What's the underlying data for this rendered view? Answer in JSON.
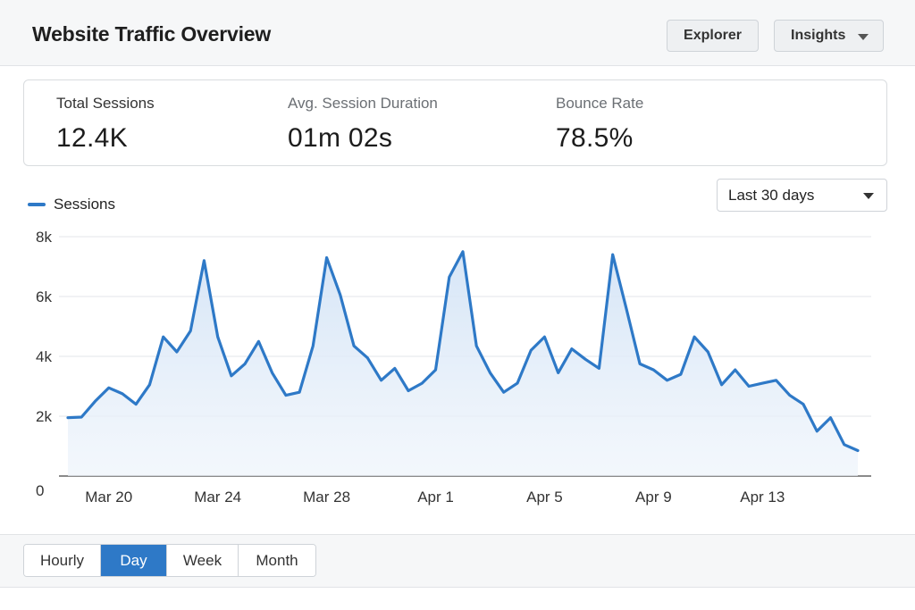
{
  "header": {
    "title": "Website Traffic Overview",
    "explorer_label": "Explorer",
    "insights_label": "Insights"
  },
  "stats": [
    {
      "label": "Total Sessions",
      "value": "12.4K"
    },
    {
      "label": "Avg. Session Duration",
      "value": "01m 02s"
    },
    {
      "label": "Bounce Rate",
      "value": "78.5%"
    }
  ],
  "range_select": {
    "value": "Last 30 days"
  },
  "granularity": {
    "options": [
      "Hourly",
      "Day",
      "Week",
      "Month"
    ],
    "selected": "Day"
  },
  "colors": {
    "accent": "#2e79c7",
    "area_fill": "#dde9f7"
  },
  "chart_data": {
    "type": "area",
    "title": "",
    "xlabel": "",
    "ylabel": "",
    "ylim": [
      0,
      8000
    ],
    "y_ticks": [
      0,
      2000,
      4000,
      6000,
      8000
    ],
    "y_tick_labels": [
      "0",
      "2k",
      "4k",
      "6k",
      "8k"
    ],
    "x_tick_labels": [
      "Mar 20",
      "Mar 24",
      "Mar 28",
      "Apr 1",
      "Apr 5",
      "Apr 9",
      "Apr 13"
    ],
    "x_tick_positions": [
      3,
      11,
      19,
      27,
      35,
      43,
      51
    ],
    "grid": true,
    "legend": "top-left",
    "series": [
      {
        "name": "Sessions",
        "values": [
          1950,
          1970,
          2500,
          2950,
          2750,
          2400,
          3050,
          4650,
          4150,
          4850,
          7200,
          4650,
          3350,
          3750,
          4500,
          3450,
          2700,
          2800,
          4350,
          7300,
          6050,
          4350,
          3950,
          3200,
          3600,
          2850,
          3100,
          3550,
          6650,
          7500,
          4350,
          3450,
          2800,
          3100,
          4200,
          4650,
          3450,
          4250,
          3900,
          3600,
          7400,
          5600,
          3750,
          3550,
          3200,
          3400,
          4650,
          4150,
          3050,
          3550,
          3000,
          3100,
          3200,
          2700,
          2400,
          1500,
          1950,
          1050,
          850
        ]
      }
    ]
  }
}
